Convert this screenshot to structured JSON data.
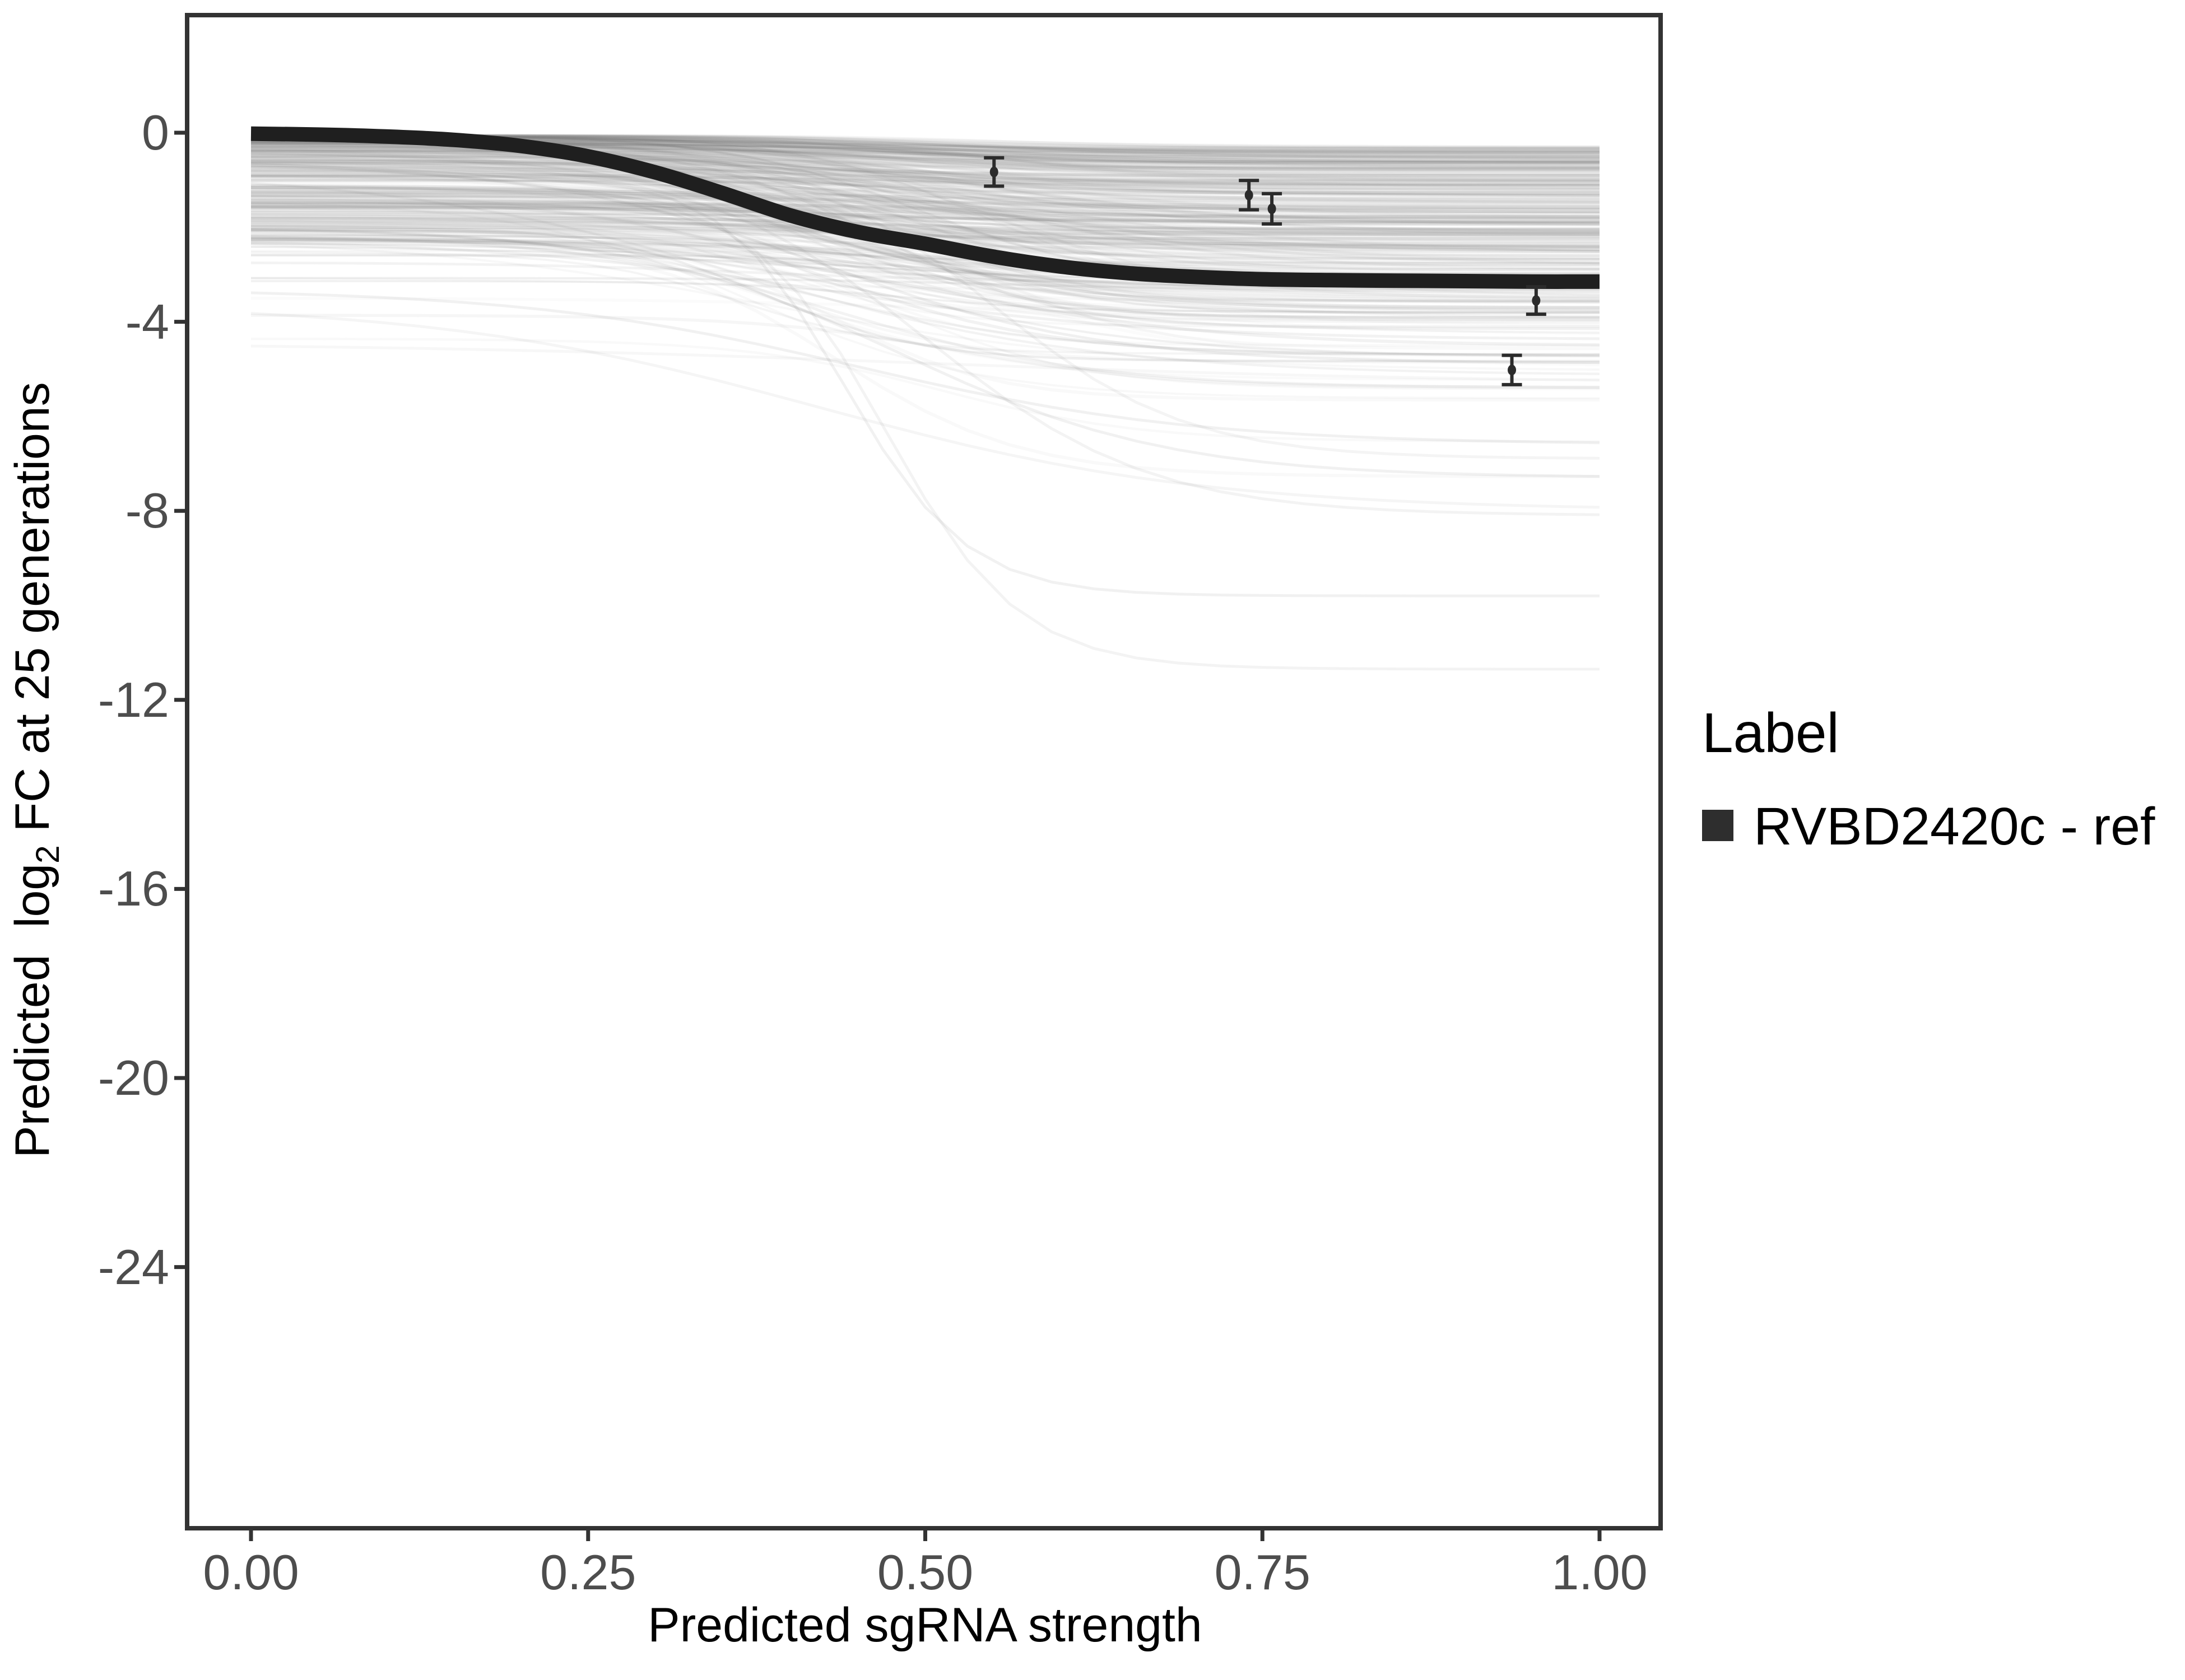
{
  "figure": {
    "background": "#ffffff",
    "y_axis": {
      "title_prefix": "Predicted  log",
      "title_sub": "2",
      "title_suffix": " FC at 25 generations",
      "tick_labels": [
        "0",
        "-4",
        "-8",
        "-12",
        "-16",
        "-20",
        "-24"
      ],
      "tick_values": [
        0,
        -4,
        -8,
        -12,
        -16,
        -20,
        -24
      ]
    },
    "x_axis": {
      "title": "Predicted sgRNA strength",
      "tick_labels": [
        "0.00",
        "0.25",
        "0.50",
        "0.75",
        "1.00"
      ],
      "tick_values": [
        0,
        0.25,
        0.5,
        0.75,
        1
      ]
    },
    "legend": {
      "title": "Label",
      "items": [
        {
          "label": "RVBD2420c - ref",
          "color": "#2e2e2e"
        }
      ]
    },
    "colors": {
      "panel_border": "#333333",
      "tick_mark": "#333333",
      "tick_label": "#4d4d4d",
      "axis_title": "#000000",
      "main_curve": "#1f1f1f",
      "error_bar": "#2b2b2b",
      "ensemble": "#777777"
    }
  },
  "chart_data": {
    "type": "line",
    "title": "",
    "xlabel": "Predicted sgRNA strength",
    "ylabel": "Predicted log2 FC at 25 generations",
    "xlim": [
      -0.047,
      1.047
    ],
    "ylim": [
      -29.6,
      2.5
    ],
    "x_ticks": [
      0,
      0.25,
      0.5,
      0.75,
      1
    ],
    "y_ticks": [
      0,
      -4,
      -8,
      -12,
      -16,
      -20,
      -24
    ],
    "grid": false,
    "legend_position": "right",
    "series": [
      {
        "name": "RVBD2420c - ref",
        "role": "reference-fit-curve",
        "type": "line",
        "color": "#1f1f1f",
        "stroke_px": 26,
        "points": [
          [
            0.0,
            -0.02
          ],
          [
            0.05,
            -0.04
          ],
          [
            0.1,
            -0.08
          ],
          [
            0.15,
            -0.15
          ],
          [
            0.2,
            -0.28
          ],
          [
            0.25,
            -0.5
          ],
          [
            0.3,
            -0.84
          ],
          [
            0.35,
            -1.28
          ],
          [
            0.4,
            -1.75
          ],
          [
            0.45,
            -2.1
          ],
          [
            0.5,
            -2.35
          ],
          [
            0.55,
            -2.62
          ],
          [
            0.6,
            -2.83
          ],
          [
            0.65,
            -2.97
          ],
          [
            0.7,
            -3.05
          ],
          [
            0.75,
            -3.1
          ],
          [
            0.8,
            -3.12
          ],
          [
            0.85,
            -3.13
          ],
          [
            0.9,
            -3.14
          ],
          [
            0.95,
            -3.15
          ],
          [
            1.0,
            -3.15
          ]
        ]
      },
      {
        "name": "posterior-draw-curves",
        "role": "background-ensemble",
        "type": "line-ensemble",
        "color": "#777777",
        "count": 380,
        "seed": 20,
        "start_range": [
          0,
          -4.6
        ],
        "end_range": [
          -0.3,
          -11.4
        ],
        "midpoint_range": [
          0.36,
          0.56
        ],
        "steepness_range": [
          7,
          18
        ],
        "features": [
          {
            "start": -4.45,
            "end": -5.3,
            "x0": 0.5,
            "k": 5,
            "opacity": 0.06
          },
          {
            "start": -0.9,
            "end": -9.8,
            "x0": 0.44,
            "k": 22,
            "opacity": 0.1
          },
          {
            "start": -1.2,
            "end": -11.35,
            "x0": 0.47,
            "k": 20,
            "opacity": 0.09
          },
          {
            "start": -0.6,
            "end": -8.1,
            "x0": 0.5,
            "k": 12,
            "opacity": 0.09
          },
          {
            "start": -2.0,
            "end": -7.3,
            "x0": 0.48,
            "k": 10,
            "opacity": 0.1
          },
          {
            "start": -3.3,
            "end": -6.6,
            "x0": 0.45,
            "k": 8,
            "opacity": 0.1
          },
          {
            "start": -0.4,
            "end": -6.9,
            "x0": 0.55,
            "k": 14,
            "opacity": 0.08
          },
          {
            "start": -3.6,
            "end": -8.0,
            "x0": 0.42,
            "k": 7,
            "opacity": 0.07
          }
        ]
      },
      {
        "name": "observed-guide-points",
        "role": "points-with-error-bars",
        "type": "scatter-errorbar",
        "color": "#2b2b2b",
        "points": [
          {
            "x": 0.551,
            "y": -0.83,
            "err": 0.3
          },
          {
            "x": 0.74,
            "y": -1.32,
            "err": 0.31
          },
          {
            "x": 0.757,
            "y": -1.61,
            "err": 0.32
          },
          {
            "x": 0.953,
            "y": -3.55,
            "err": 0.29
          },
          {
            "x": 0.935,
            "y": -5.02,
            "err": 0.31
          }
        ]
      }
    ]
  }
}
